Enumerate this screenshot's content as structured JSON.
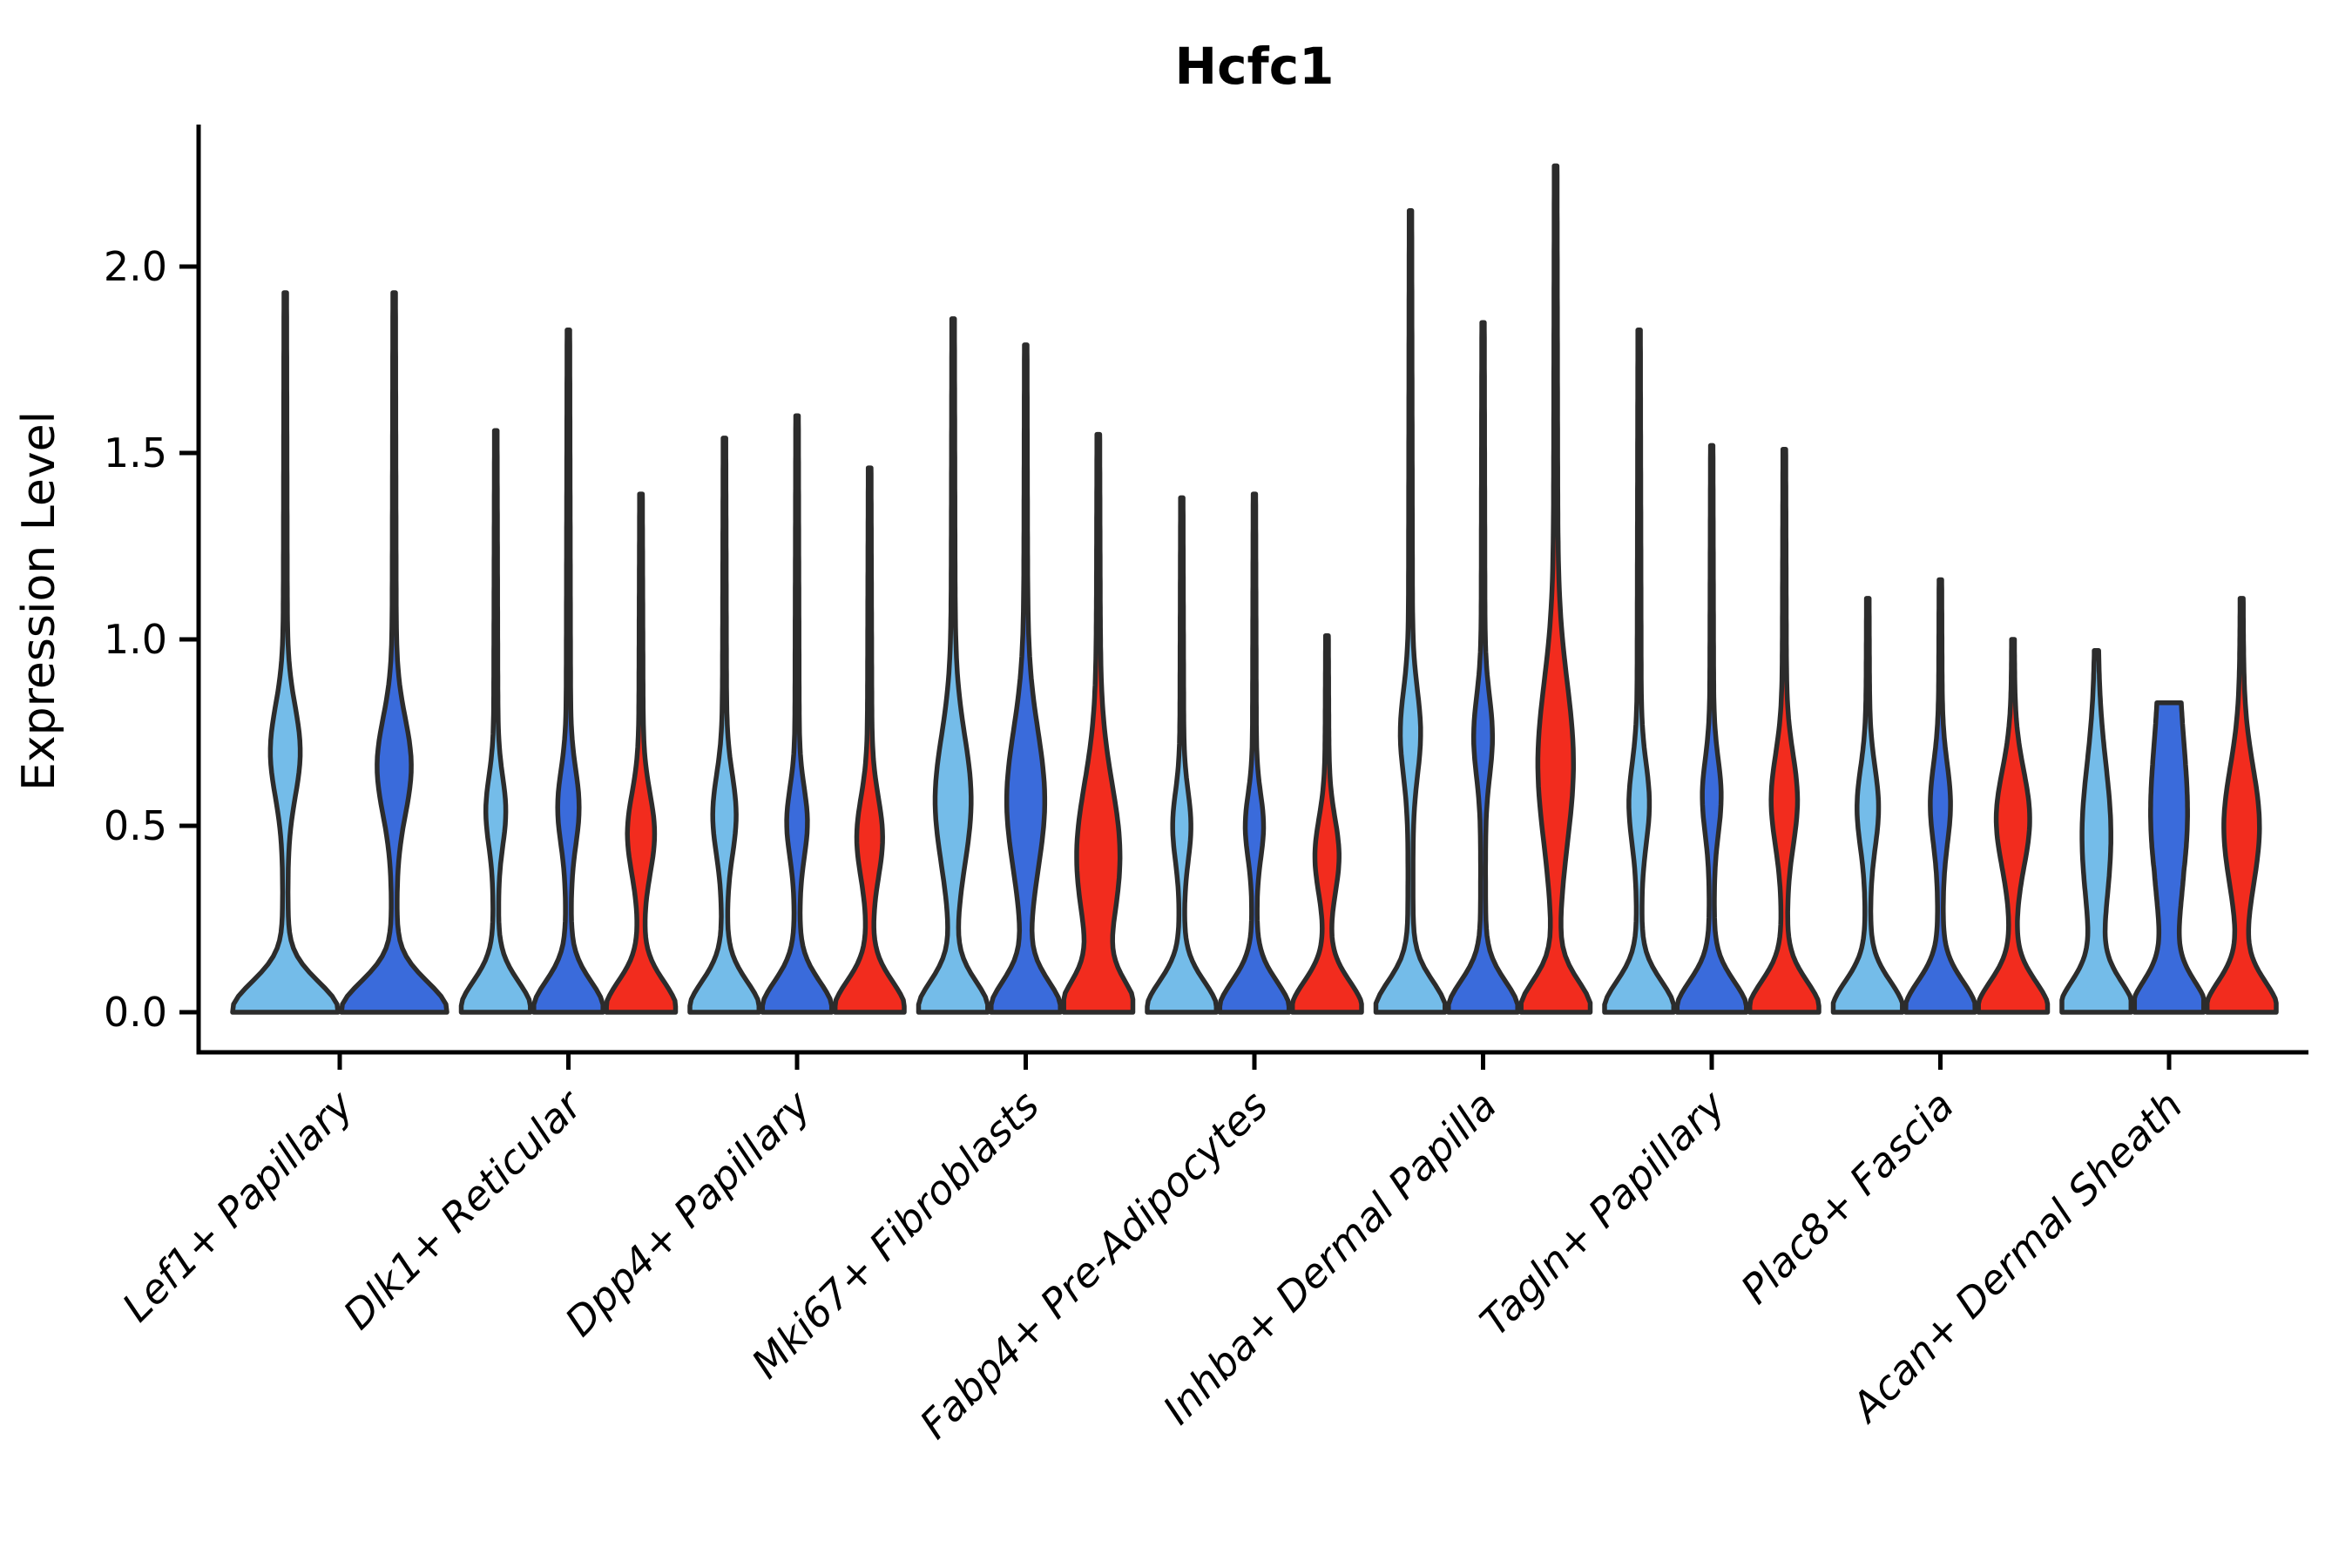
{
  "title": "Hcfc1",
  "y_axis": {
    "label": "Expression Level",
    "ticks": [
      "0.0",
      "0.5",
      "1.0",
      "1.5",
      "2.0"
    ],
    "tick_values": [
      0.0,
      0.5,
      1.0,
      1.5,
      2.0
    ]
  },
  "colors": {
    "light_blue": "#74BCE9",
    "dark_blue": "#3A6BDB",
    "red": "#F22C1E",
    "violin_outline": "#2C2C2C",
    "axis": "#000000",
    "background": "#FFFFFF",
    "text": "#000000"
  },
  "chart_data": {
    "type": "violin",
    "title": "Hcfc1",
    "xlabel": "",
    "ylabel": "Expression Level",
    "ylim": [
      -0.11,
      2.38
    ],
    "yticks": [
      0.0,
      0.5,
      1.0,
      1.5,
      2.0
    ],
    "grid": false,
    "legend": false,
    "x_tick_rotation": 45,
    "series": [
      {
        "key": "light_blue",
        "color": "#74BCE9"
      },
      {
        "key": "dark_blue",
        "color": "#3A6BDB"
      },
      {
        "key": "red",
        "color": "#F22C1E"
      }
    ],
    "categories": [
      "Lef1+ Papillary",
      "Dlk1+ Reticular",
      "Dpp4+ Papillary",
      "Mki67+ Fibroblasts",
      "Fabp4+ Pre-Adipocytes",
      "Inhba+ Dermal Papilla",
      "Tagln+ Papillary",
      "Plac8+ Fascia",
      "Acan+ Dermal Sheath"
    ],
    "groups": [
      {
        "category": "Lef1+ Papillary",
        "violins": [
          {
            "series": "light_blue",
            "max": 1.93,
            "bulge_center": 0.7,
            "bulge_width": 0.24,
            "bulge_sigma": 0.17,
            "stem": 0.055
          },
          {
            "series": "dark_blue",
            "max": 1.93,
            "bulge_center": 0.66,
            "bulge_width": 0.28,
            "bulge_sigma": 0.18,
            "stem": 0.055
          }
        ]
      },
      {
        "category": "Dlk1+ Reticular",
        "violins": [
          {
            "series": "light_blue",
            "max": 1.56,
            "bulge_center": 0.54,
            "bulge_width": 0.22,
            "bulge_sigma": 0.13,
            "stem": 0.085
          },
          {
            "series": "dark_blue",
            "max": 1.83,
            "bulge_center": 0.55,
            "bulge_width": 0.24,
            "bulge_sigma": 0.14,
            "stem": 0.085
          },
          {
            "series": "red",
            "max": 1.39,
            "bulge_center": 0.48,
            "bulge_width": 0.32,
            "bulge_sigma": 0.15,
            "stem": 0.09
          }
        ]
      },
      {
        "category": "Dpp4+ Papillary",
        "violins": [
          {
            "series": "light_blue",
            "max": 1.54,
            "bulge_center": 0.53,
            "bulge_width": 0.27,
            "bulge_sigma": 0.15,
            "stem": 0.085
          },
          {
            "series": "dark_blue",
            "max": 1.6,
            "bulge_center": 0.51,
            "bulge_width": 0.23,
            "bulge_sigma": 0.13,
            "stem": 0.085
          },
          {
            "series": "red",
            "max": 1.46,
            "bulge_center": 0.47,
            "bulge_width": 0.3,
            "bulge_sigma": 0.15,
            "stem": 0.09
          }
        ]
      },
      {
        "category": "Mki67+ Fibroblasts",
        "violins": [
          {
            "series": "light_blue",
            "max": 1.86,
            "bulge_center": 0.57,
            "bulge_width": 0.45,
            "bulge_sigma": 0.24,
            "stem": 0.085
          },
          {
            "series": "dark_blue",
            "max": 1.79,
            "bulge_center": 0.57,
            "bulge_width": 0.48,
            "bulge_sigma": 0.26,
            "stem": 0.085
          },
          {
            "series": "red",
            "max": 1.55,
            "bulge_center": 0.42,
            "bulge_width": 0.55,
            "bulge_sigma": 0.27,
            "stem": 0.09
          }
        ]
      },
      {
        "category": "Fabp4+ Pre-Adipocytes",
        "violins": [
          {
            "series": "light_blue",
            "max": 1.38,
            "bulge_center": 0.5,
            "bulge_width": 0.2,
            "bulge_sigma": 0.13,
            "stem": 0.08
          },
          {
            "series": "dark_blue",
            "max": 1.39,
            "bulge_center": 0.5,
            "bulge_width": 0.2,
            "bulge_sigma": 0.12,
            "stem": 0.08
          },
          {
            "series": "red",
            "max": 1.01,
            "bulge_center": 0.42,
            "bulge_width": 0.28,
            "bulge_sigma": 0.14,
            "stem": 0.09
          }
        ]
      },
      {
        "category": "Inhba+ Dermal Papilla",
        "violins": [
          {
            "series": "light_blue",
            "max": 2.15,
            "bulge_center": 0.75,
            "bulge_width": 0.23,
            "bulge_sigma": 0.16,
            "stem": 0.08
          },
          {
            "series": "dark_blue",
            "max": 1.85,
            "bulge_center": 0.74,
            "bulge_width": 0.21,
            "bulge_sigma": 0.15,
            "stem": 0.08
          },
          {
            "series": "red",
            "max": 2.27,
            "bulge_center": 0.67,
            "bulge_width": 0.44,
            "bulge_sigma": 0.3,
            "stem": 0.09
          }
        ]
      },
      {
        "category": "Tagln+ Papillary",
        "violins": [
          {
            "series": "light_blue",
            "max": 1.83,
            "bulge_center": 0.56,
            "bulge_width": 0.23,
            "bulge_sigma": 0.15,
            "stem": 0.08
          },
          {
            "series": "dark_blue",
            "max": 1.52,
            "bulge_center": 0.58,
            "bulge_width": 0.21,
            "bulge_sigma": 0.14,
            "stem": 0.08
          },
          {
            "series": "red",
            "max": 1.51,
            "bulge_center": 0.57,
            "bulge_width": 0.31,
            "bulge_sigma": 0.17,
            "stem": 0.09
          }
        ]
      },
      {
        "category": "Plac8+ Fascia",
        "violins": [
          {
            "series": "light_blue",
            "max": 1.11,
            "bulge_center": 0.55,
            "bulge_width": 0.25,
            "bulge_sigma": 0.15,
            "stem": 0.085
          },
          {
            "series": "dark_blue",
            "max": 1.16,
            "bulge_center": 0.56,
            "bulge_width": 0.23,
            "bulge_sigma": 0.15,
            "stem": 0.085
          },
          {
            "series": "red",
            "max": 1.0,
            "bulge_center": 0.52,
            "bulge_width": 0.42,
            "bulge_sigma": 0.18,
            "stem": 0.09
          }
        ]
      },
      {
        "category": "Acan+ Dermal Sheath",
        "violins": [
          {
            "series": "light_blue",
            "max": 0.97,
            "bulge_center": 0.48,
            "bulge_width": 0.33,
            "bulge_sigma": 0.26,
            "stem": 0.12
          },
          {
            "series": "dark_blue",
            "max": 0.83,
            "bulge_center": 0.5,
            "bulge_width": 0.4,
            "bulge_sigma": 0.3,
            "stem": 0.12,
            "cap": 0.18
          },
          {
            "series": "red",
            "max": 1.11,
            "bulge_center": 0.5,
            "bulge_width": 0.44,
            "bulge_sigma": 0.22,
            "stem": 0.1
          }
        ]
      }
    ]
  }
}
